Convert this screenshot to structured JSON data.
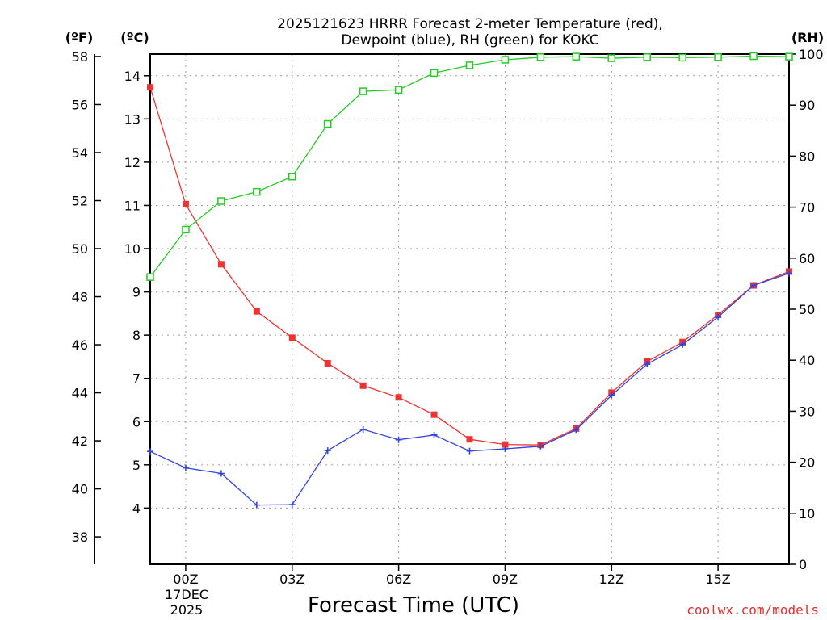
{
  "chart_data": {
    "type": "line",
    "title_lines": [
      "2025121623 HRRR Forecast 2-meter Temperature (red),",
      "Dewpoint (blue), RH (green) for KOKC"
    ],
    "xlabel": "Forecast Time (UTC)",
    "date_label": [
      "17DEC",
      "2025"
    ],
    "credit": "coolwx.com/models",
    "units": {
      "fahrenheit": "(ºF)",
      "celsius": "(ºC)",
      "rh": "(RH)"
    },
    "x_hours": [
      -1,
      0,
      1,
      2,
      3,
      4,
      5,
      6,
      7,
      8,
      9,
      10,
      11,
      12,
      13,
      14,
      15,
      16,
      17
    ],
    "x_tick_labels": [
      {
        "hour": 0,
        "label": "00Z"
      },
      {
        "hour": 3,
        "label": "03Z"
      },
      {
        "hour": 6,
        "label": "06Z"
      },
      {
        "hour": 9,
        "label": "09Z"
      },
      {
        "hour": 12,
        "label": "12Z"
      },
      {
        "hour": 15,
        "label": "15Z"
      }
    ],
    "xlim": [
      -1,
      17
    ],
    "y_celsius": {
      "lim": [
        2.7,
        14.5
      ],
      "ticks": [
        "4",
        "5",
        "6",
        "7",
        "8",
        "9",
        "10",
        "11",
        "12",
        "13",
        "14"
      ]
    },
    "y_fahrenheit": {
      "ticks": [
        "38",
        "40",
        "42",
        "44",
        "46",
        "48",
        "50",
        "52",
        "54",
        "56",
        "58"
      ]
    },
    "y_rh": {
      "lim": [
        0,
        100
      ],
      "ticks": [
        "0",
        "10",
        "20",
        "30",
        "40",
        "50",
        "60",
        "70",
        "80",
        "90",
        "100"
      ]
    },
    "series": [
      {
        "name": "Temperature",
        "unit": "C",
        "color": "#ee3333",
        "marker": "filled-square",
        "values": [
          13.73,
          11.03,
          9.64,
          8.55,
          7.94,
          7.35,
          6.83,
          6.56,
          6.16,
          5.59,
          5.47,
          5.46,
          5.84,
          6.67,
          7.39,
          7.84,
          8.47,
          9.15,
          9.47
        ]
      },
      {
        "name": "Dewpoint",
        "unit": "C",
        "color": "#3344dd",
        "marker": "plus",
        "values": [
          5.31,
          4.93,
          4.8,
          4.07,
          4.08,
          5.33,
          5.82,
          5.58,
          5.69,
          5.32,
          5.37,
          5.43,
          5.81,
          6.61,
          7.33,
          7.78,
          8.42,
          9.15,
          9.43
        ]
      },
      {
        "name": "RH",
        "unit": "%",
        "color": "#22cc22",
        "marker": "open-square",
        "values": [
          56.3,
          65.6,
          71.2,
          73.0,
          76.0,
          86.3,
          92.7,
          93.0,
          96.3,
          97.8,
          98.9,
          99.4,
          99.5,
          99.2,
          99.4,
          99.3,
          99.4,
          99.6,
          99.5
        ]
      }
    ]
  }
}
